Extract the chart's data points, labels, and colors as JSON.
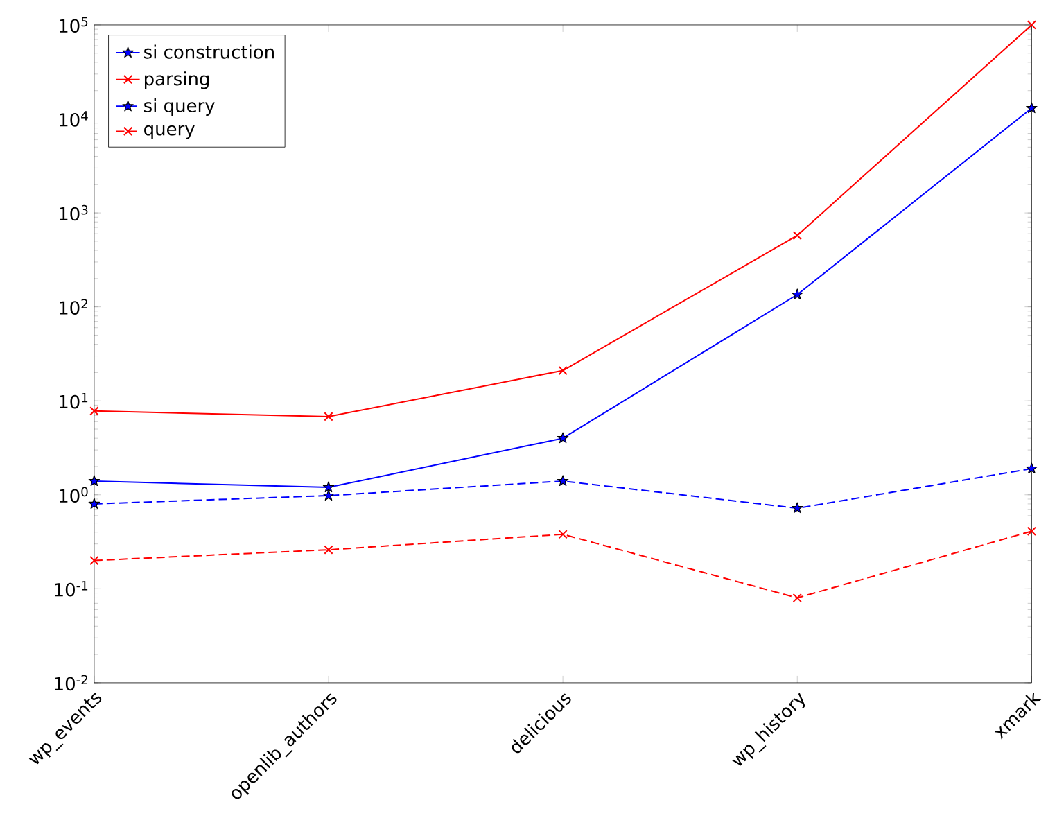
{
  "chart_data": {
    "type": "line",
    "log": "y",
    "categories": [
      "wp_events",
      "openlib_authors",
      "delicious",
      "wp_history",
      "xmark"
    ],
    "ylim": [
      0.01,
      100000
    ],
    "yticks": [
      {
        "value": 0.01,
        "label": "10$^{-2}$"
      },
      {
        "value": 0.1,
        "label": "10$^{-1}$"
      },
      {
        "value": 1,
        "label": "10$^{0}$"
      },
      {
        "value": 10,
        "label": "10$^{1}$"
      },
      {
        "value": 100,
        "label": "10$^{2}$"
      },
      {
        "value": 1000,
        "label": "10$^{3}$"
      },
      {
        "value": 10000,
        "label": "10$^{4}$"
      },
      {
        "value": 100000,
        "label": "10$^{5}$"
      }
    ],
    "legend": "top left",
    "grid": false,
    "series": [
      {
        "name": "si construction",
        "color": "#0000ff",
        "marker": "star",
        "line_style": "solid",
        "values": [
          1.4,
          1.2,
          4.0,
          135,
          13000
        ]
      },
      {
        "name": "parsing",
        "color": "#ff0000",
        "marker": "cross",
        "line_style": "solid",
        "values": [
          7.8,
          6.8,
          21,
          575,
          100000
        ]
      },
      {
        "name": "si query",
        "color": "#0000ff",
        "marker": "star",
        "line_style": "dashed",
        "values": [
          0.8,
          0.98,
          1.4,
          0.72,
          1.9
        ]
      },
      {
        "name": "query",
        "color": "#ff0000",
        "marker": "cross",
        "line_style": "dashed",
        "values": [
          0.2,
          0.26,
          0.38,
          0.08,
          0.41
        ]
      }
    ]
  }
}
